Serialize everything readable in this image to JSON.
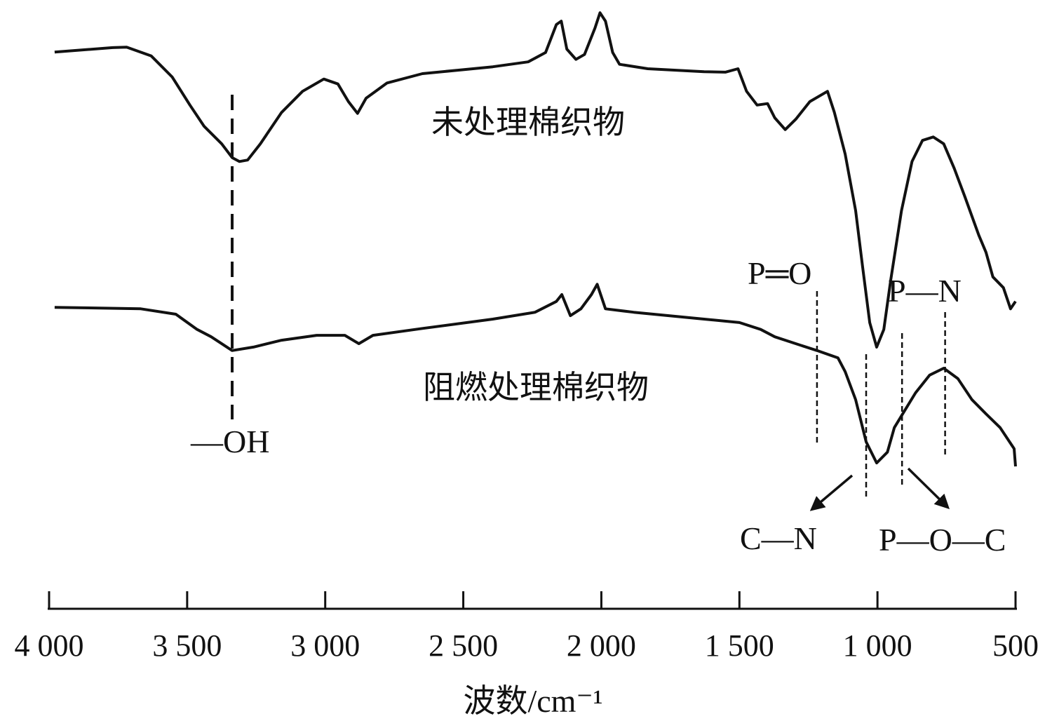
{
  "chart_data": {
    "type": "line",
    "title": "",
    "xlabel": "波数/cm⁻¹",
    "ylabel": "",
    "xlim": [
      4000,
      500
    ],
    "x_reversed": true,
    "x_ticks": [
      4000,
      3500,
      3000,
      2500,
      2000,
      1500,
      1000,
      500
    ],
    "x_tick_labels": [
      "4 000",
      "3 500",
      "3 000",
      "2 500",
      "2 000",
      "1 500",
      "1 000",
      "500"
    ],
    "y_units": "relative (no y axis shown)",
    "ylim": [
      0,
      100
    ],
    "grid": false,
    "series": [
      {
        "name": "未处理棉织物",
        "points": [
          [
            3980,
            89.4
          ],
          [
            3770,
            90.3
          ],
          [
            3719,
            90.4
          ],
          [
            3630,
            88.6
          ],
          [
            3554,
            84.3
          ],
          [
            3490,
            78.6
          ],
          [
            3439,
            74.3
          ],
          [
            3375,
            70.7
          ],
          [
            3337,
            67.9
          ],
          [
            3311,
            67.1
          ],
          [
            3281,
            67.4
          ],
          [
            3235,
            70.7
          ],
          [
            3158,
            77.1
          ],
          [
            3082,
            81.4
          ],
          [
            3005,
            83.9
          ],
          [
            2954,
            82.9
          ],
          [
            2916,
            79.3
          ],
          [
            2883,
            76.9
          ],
          [
            2852,
            80
          ],
          [
            2776,
            83.1
          ],
          [
            2648,
            85
          ],
          [
            2520,
            85.7
          ],
          [
            2393,
            86.4
          ],
          [
            2265,
            87.4
          ],
          [
            2202,
            89.3
          ],
          [
            2163,
            95
          ],
          [
            2145,
            95.7
          ],
          [
            2125,
            90
          ],
          [
            2092,
            87.9
          ],
          [
            2061,
            88.9
          ],
          [
            2023,
            94.3
          ],
          [
            2005,
            97.4
          ],
          [
            1985,
            95.7
          ],
          [
            1959,
            89.3
          ],
          [
            1934,
            86.9
          ],
          [
            1832,
            86
          ],
          [
            1730,
            85.7
          ],
          [
            1628,
            85.4
          ],
          [
            1551,
            85.3
          ],
          [
            1505,
            86
          ],
          [
            1474,
            81.4
          ],
          [
            1436,
            78.6
          ],
          [
            1398,
            78.9
          ],
          [
            1372,
            76
          ],
          [
            1334,
            73.6
          ],
          [
            1296,
            75.7
          ],
          [
            1245,
            79.3
          ],
          [
            1181,
            81.4
          ],
          [
            1156,
            77.1
          ],
          [
            1117,
            68.6
          ],
          [
            1079,
            57.1
          ],
          [
            1054,
            45.7
          ],
          [
            1028,
            34.3
          ],
          [
            1003,
            29.3
          ],
          [
            977,
            32.9
          ],
          [
            952,
            42.9
          ],
          [
            913,
            57.1
          ],
          [
            875,
            67.1
          ],
          [
            837,
            71.4
          ],
          [
            798,
            72.1
          ],
          [
            760,
            70.7
          ],
          [
            722,
            65.7
          ],
          [
            684,
            60
          ],
          [
            633,
            52.1
          ],
          [
            607,
            48.6
          ],
          [
            582,
            43.6
          ],
          [
            544,
            41.4
          ],
          [
            518,
            37.1
          ],
          [
            500,
            38.6
          ]
        ]
      },
      {
        "name": "阻燃处理棉织物",
        "points": [
          [
            3980,
            37.4
          ],
          [
            3668,
            37.1
          ],
          [
            3541,
            36
          ],
          [
            3464,
            32.9
          ],
          [
            3413,
            31.4
          ],
          [
            3337,
            28.6
          ],
          [
            3260,
            29.3
          ],
          [
            3158,
            30.7
          ],
          [
            3031,
            31.7
          ],
          [
            2929,
            31.7
          ],
          [
            2878,
            30
          ],
          [
            2827,
            31.7
          ],
          [
            2648,
            33.1
          ],
          [
            2393,
            35
          ],
          [
            2240,
            36.4
          ],
          [
            2163,
            38.6
          ],
          [
            2143,
            40
          ],
          [
            2112,
            35.7
          ],
          [
            2074,
            37.1
          ],
          [
            2036,
            40
          ],
          [
            2015,
            42.1
          ],
          [
            1985,
            37.1
          ],
          [
            1883,
            36.4
          ],
          [
            1628,
            35
          ],
          [
            1500,
            34.3
          ],
          [
            1423,
            32.9
          ],
          [
            1372,
            31.4
          ],
          [
            1296,
            30
          ],
          [
            1219,
            28.6
          ],
          [
            1143,
            27.1
          ],
          [
            1117,
            24.3
          ],
          [
            1079,
            18.6
          ],
          [
            1041,
            10
          ],
          [
            1003,
            5.7
          ],
          [
            964,
            7.9
          ],
          [
            939,
            12.9
          ],
          [
            901,
            16.4
          ],
          [
            862,
            20
          ],
          [
            811,
            23.6
          ],
          [
            760,
            25
          ],
          [
            709,
            22.9
          ],
          [
            658,
            18.6
          ],
          [
            607,
            15.7
          ],
          [
            556,
            12.9
          ],
          [
            505,
            8.6
          ],
          [
            500,
            5
          ]
        ]
      }
    ],
    "annotations": [
      {
        "label": "—OH",
        "wavenumber": 3337
      },
      {
        "label": "P═O",
        "wavenumber": 1219
      },
      {
        "label": "C—N",
        "wavenumber": 1041
      },
      {
        "label": "P—O—C",
        "wavenumber": 911
      },
      {
        "label": "P—N",
        "wavenumber": 755
      }
    ]
  }
}
